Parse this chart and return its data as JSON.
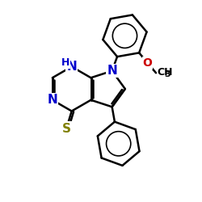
{
  "bg_color": "#ffffff",
  "bond_color": "#000000",
  "bond_width": 1.8,
  "atom_colors": {
    "N": "#0000cc",
    "S": "#808000",
    "O": "#cc0000",
    "C": "#000000"
  },
  "font_size_atom": 11,
  "font_size_sub": 8,
  "figsize": [
    2.5,
    2.5
  ],
  "dpi": 100,
  "xlim": [
    0,
    10
  ],
  "ylim": [
    0,
    10
  ]
}
